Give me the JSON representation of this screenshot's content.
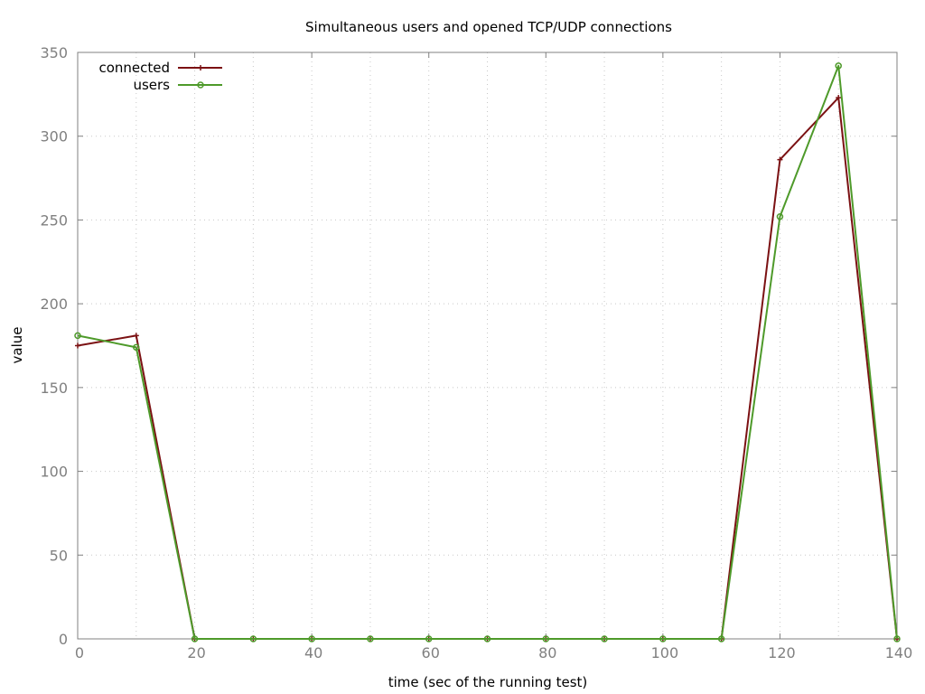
{
  "chart_data": {
    "type": "line",
    "title": "Simultaneous users and opened TCP/UDP connections",
    "xlabel": "time (sec of the running test)",
    "ylabel": "value",
    "xlim": [
      0,
      140
    ],
    "ylim": [
      0,
      350
    ],
    "x_ticks": [
      0,
      20,
      40,
      60,
      80,
      100,
      120,
      140
    ],
    "y_ticks": [
      0,
      50,
      100,
      150,
      200,
      250,
      300,
      350
    ],
    "x_tick_labels": [
      "0",
      "20",
      "40",
      "60",
      "80",
      "100",
      "120",
      "140"
    ],
    "y_tick_labels": [
      "0",
      "50",
      "100",
      "150",
      "200",
      "250",
      "300",
      "350"
    ],
    "grid": true,
    "legend_position": "top-left",
    "x": [
      0,
      10,
      20,
      30,
      40,
      50,
      60,
      70,
      80,
      90,
      100,
      110,
      120,
      130,
      140
    ],
    "series": [
      {
        "name": "connected",
        "color": "#7b1113",
        "marker": "plus",
        "values": [
          175,
          181,
          0,
          0,
          0,
          0,
          0,
          0,
          0,
          0,
          0,
          0,
          286,
          323,
          0
        ]
      },
      {
        "name": "users",
        "color": "#4e9a2a",
        "marker": "circle",
        "values": [
          181,
          174,
          0,
          0,
          0,
          0,
          0,
          0,
          0,
          0,
          0,
          0,
          252,
          342,
          0
        ]
      }
    ]
  }
}
